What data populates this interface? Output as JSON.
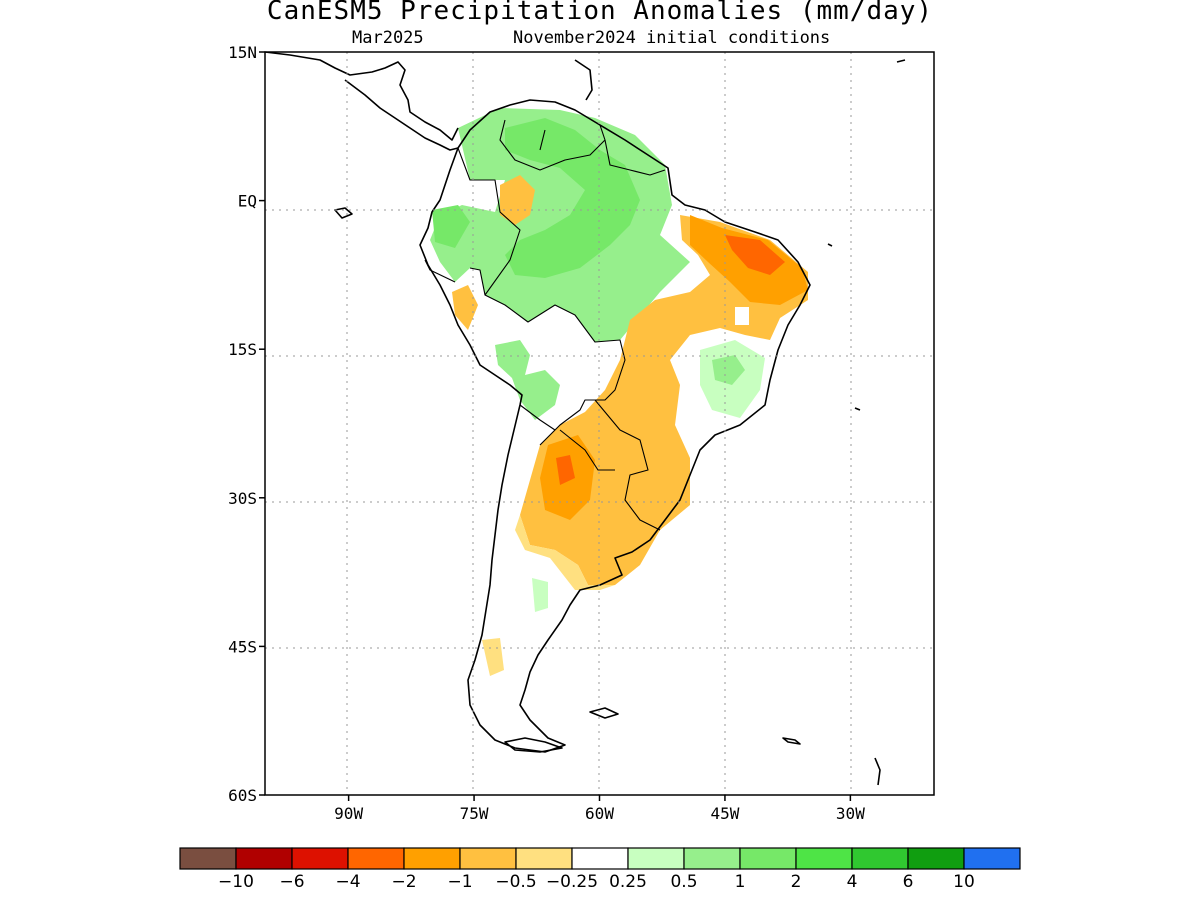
{
  "title": "CanESM5 Precipitation Anomalies (mm/day)",
  "subtitle_left": "Mar2025",
  "subtitle_right": "November2024 initial conditions",
  "map": {
    "lon_range": [
      -100,
      -20
    ],
    "lat_range": [
      -60,
      15
    ],
    "lon_ticks": [
      {
        "value": -90,
        "label": "90W"
      },
      {
        "value": -75,
        "label": "75W"
      },
      {
        "value": -60,
        "label": "60W"
      },
      {
        "value": -45,
        "label": "45W"
      },
      {
        "value": -30,
        "label": "30W"
      }
    ],
    "lat_ticks": [
      {
        "value": 15,
        "label": "15N"
      },
      {
        "value": 0,
        "label": "EQ"
      },
      {
        "value": -15,
        "label": "15S"
      },
      {
        "value": -30,
        "label": "30S"
      },
      {
        "value": -45,
        "label": "45S"
      },
      {
        "value": -60,
        "label": "60S"
      }
    ],
    "grid": "dotted"
  },
  "colorbar": {
    "colors": [
      "#7a4e40",
      "#b00000",
      "#dd1100",
      "#ff6600",
      "#ffa000",
      "#ffc040",
      "#ffe080",
      "#ffffff",
      "#c8ffc0",
      "#96ef8c",
      "#76e868",
      "#4ee446",
      "#30c830",
      "#109e10",
      "#2070f0"
    ],
    "labels": [
      "−10",
      "−6",
      "−4",
      "−2",
      "−1",
      "−0.5",
      "−0.25",
      "0.25",
      "0.5",
      "1",
      "2",
      "4",
      "6",
      "10"
    ]
  }
}
